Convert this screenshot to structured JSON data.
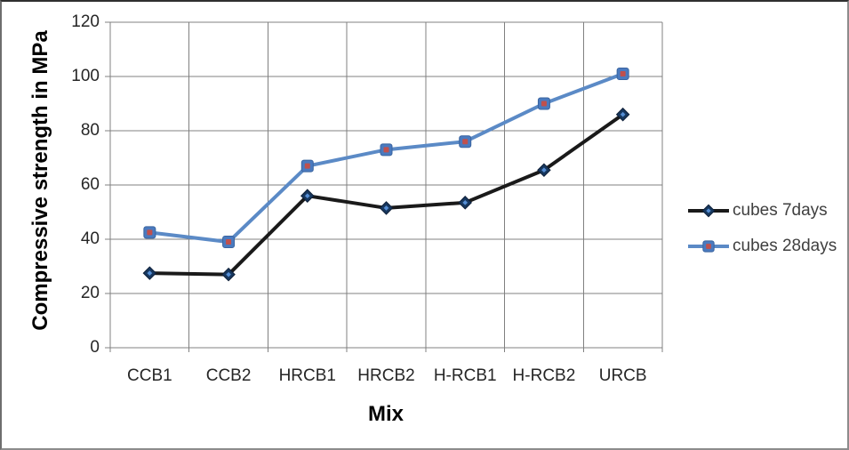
{
  "chart_data": {
    "type": "line",
    "title": "",
    "xlabel": "Mix",
    "ylabel": "Compressive strength in MPa",
    "categories": [
      "CCB1",
      "CCB2",
      "HRCB1",
      "HRCB2",
      "H-RCB1",
      "H-RCB2",
      "URCB"
    ],
    "series": [
      {
        "name": "cubes 7days",
        "values": [
          27.5,
          27,
          56,
          51.5,
          53.5,
          65.5,
          86
        ],
        "line_color": "#1a1a1a",
        "marker": "diamond",
        "marker_color": "#17375e",
        "marker_border": "#0e1f38",
        "marker_inner": "#558ed5"
      },
      {
        "name": "cubes 28days",
        "values": [
          42.5,
          39,
          67,
          73,
          76,
          90,
          101
        ],
        "line_color": "#5b8ac6",
        "marker": "square",
        "marker_color": "#4a7abf",
        "marker_border": "#3a649f",
        "marker_inner": "#c0504d"
      }
    ],
    "ylim": [
      0,
      120
    ],
    "yticks": [
      0,
      20,
      40,
      60,
      80,
      100,
      120
    ],
    "grid": true,
    "legend_position": "right",
    "gridline_color": "#808080",
    "axis_color": "#808080",
    "tick_text_color": "#262626"
  }
}
